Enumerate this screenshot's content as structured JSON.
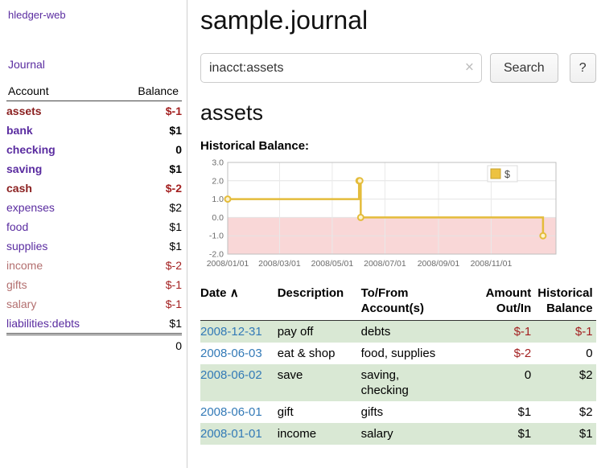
{
  "sidebar": {
    "brand": "hledger-web",
    "nav": "Journal",
    "header": {
      "account": "Account",
      "balance": "Balance"
    },
    "accounts": [
      {
        "name": "assets",
        "balance": "$-1",
        "indent": 0,
        "name_cls": "neg-strong",
        "bold": true
      },
      {
        "name": "bank",
        "balance": "$1",
        "indent": 1,
        "name_cls": "lnk",
        "bold": true
      },
      {
        "name": "checking",
        "balance": "0",
        "indent": 2,
        "name_cls": "lnk",
        "bold": true
      },
      {
        "name": "saving",
        "balance": "$1",
        "indent": 2,
        "name_cls": "lnk",
        "bold": true
      },
      {
        "name": "cash",
        "balance": "$-2",
        "indent": 1,
        "name_cls": "neg-strong",
        "bold": true
      },
      {
        "name": "expenses",
        "balance": "$2",
        "indent": 0,
        "name_cls": "lnk",
        "bold": false
      },
      {
        "name": "food",
        "balance": "$1",
        "indent": 1,
        "name_cls": "lnk",
        "bold": false
      },
      {
        "name": "supplies",
        "balance": "$1",
        "indent": 1,
        "name_cls": "lnk",
        "bold": false
      },
      {
        "name": "income",
        "balance": "$-2",
        "indent": 0,
        "name_cls": "neg-soft",
        "bold": false
      },
      {
        "name": "gifts",
        "balance": "$-1",
        "indent": 1,
        "name_cls": "neg-soft",
        "bold": false
      },
      {
        "name": "salary",
        "balance": "$-1",
        "indent": 1,
        "name_cls": "neg-soft",
        "bold": false
      },
      {
        "name": "liabilities:debts",
        "balance": "$1",
        "indent": 0,
        "name_cls": "lnk",
        "bold": false
      }
    ],
    "total": "0"
  },
  "main": {
    "title": "sample.journal",
    "search": {
      "query": "inacct:assets",
      "clear": "×",
      "button": "Search",
      "help": "?"
    },
    "section_title": "assets",
    "chart_label": "Historical Balance:"
  },
  "chart_data": {
    "type": "line",
    "step": true,
    "legend": [
      {
        "label": "$",
        "color": "#edc240"
      }
    ],
    "legend_position": "top-right",
    "grid": true,
    "x_tick_labels": [
      "2008/01/01",
      "2008/03/01",
      "2008/05/01",
      "2008/07/01",
      "2008/09/01",
      "2008/11/01"
    ],
    "x_tick_days": [
      0,
      60,
      121,
      182,
      244,
      305
    ],
    "x_domain": [
      0,
      380
    ],
    "y_ticks": [
      -2,
      -1,
      0,
      1,
      2,
      3
    ],
    "ylim": [
      -2,
      3
    ],
    "points": [
      {
        "date": "2008-01-01",
        "day": 0,
        "value": 1
      },
      {
        "date": "2008-06-01",
        "day": 152,
        "value": 2
      },
      {
        "date": "2008-06-02",
        "day": 153,
        "value": 2
      },
      {
        "date": "2008-06-03",
        "day": 154,
        "value": 0
      },
      {
        "date": "2008-12-31",
        "day": 365,
        "value": -1
      }
    ],
    "line_color": "#e4bc3b",
    "marker_fill": "#fdf3d0",
    "negative_region_color": "#f9d7d7"
  },
  "register": {
    "headers": {
      "date": "Date",
      "sort_indicator": "∧",
      "description": "Description",
      "accounts": "To/From\nAccount(s)",
      "amount": "Amount\nOut/In",
      "balance": "Historical\nBalance"
    },
    "rows": [
      {
        "date": "2008-12-31",
        "description": "pay off",
        "accounts": "debts",
        "amount": "$-1",
        "balance": "$-1"
      },
      {
        "date": "2008-06-03",
        "description": "eat & shop",
        "accounts": "food, supplies",
        "amount": "$-2",
        "balance": "0"
      },
      {
        "date": "2008-06-02",
        "description": "save",
        "accounts": "saving,\nchecking",
        "amount": "0",
        "balance": "$2"
      },
      {
        "date": "2008-06-01",
        "description": "gift",
        "accounts": "gifts",
        "amount": "$1",
        "balance": "$2"
      },
      {
        "date": "2008-01-01",
        "description": "income",
        "accounts": "salary",
        "amount": "$1",
        "balance": "$1"
      }
    ]
  }
}
